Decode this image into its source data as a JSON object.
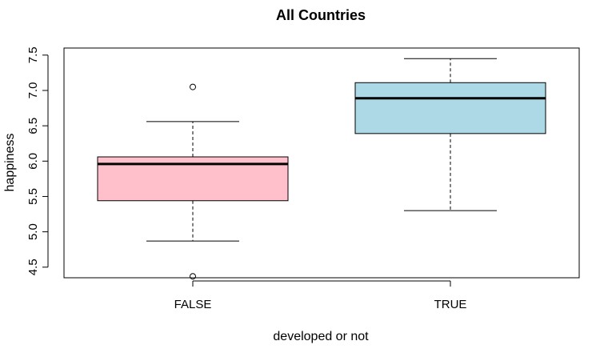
{
  "chart_data": {
    "type": "boxplot",
    "title": "All Countries",
    "xlabel": "developed or not",
    "ylabel": "happiness",
    "ylim": [
      4.35,
      7.6
    ],
    "y_ticks": [
      4.5,
      5.0,
      5.5,
      6.0,
      6.5,
      7.0,
      7.5
    ],
    "y_tick_labels": [
      "4.5",
      "5.0",
      "5.5",
      "6.0",
      "6.5",
      "7.0",
      "7.5"
    ],
    "grid": false,
    "categories": [
      "FALSE",
      "TRUE"
    ],
    "boxes": [
      {
        "category": "FALSE",
        "color": "#ffc0cb",
        "whisker_low": 4.87,
        "q1": 5.44,
        "median": 5.96,
        "q3": 6.06,
        "whisker_high": 6.56,
        "outliers": [
          7.05,
          4.37
        ]
      },
      {
        "category": "TRUE",
        "color": "#add8e6",
        "whisker_low": 5.3,
        "q1": 6.39,
        "median": 6.89,
        "q3": 7.11,
        "whisker_high": 7.45,
        "outliers": []
      }
    ]
  }
}
